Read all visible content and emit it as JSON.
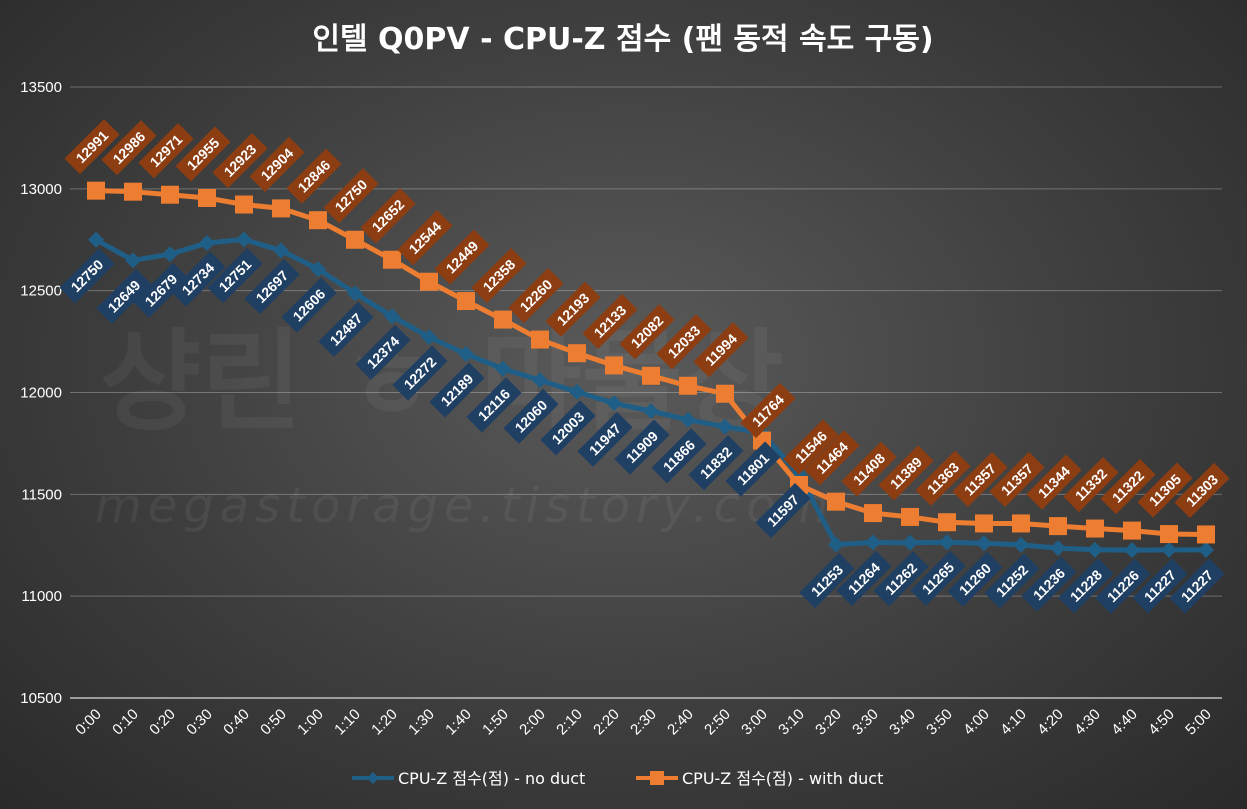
{
  "chart_data": {
    "type": "line",
    "title": "인텔 Q0PV - CPU-Z 점수 (팬 동적 속도 구동)",
    "watermark": {
      "main": "샹린 ㅎ 마물상",
      "url": "megastorage.tistory.com"
    },
    "x": [
      "0:00",
      "0:10",
      "0:20",
      "0:30",
      "0:40",
      "0:50",
      "1:00",
      "1:10",
      "1:20",
      "1:30",
      "1:40",
      "1:50",
      "2:00",
      "2:10",
      "2:20",
      "2:30",
      "2:40",
      "2:50",
      "3:00",
      "3:10",
      "3:20",
      "3:30",
      "3:40",
      "3:50",
      "4:00",
      "4:10",
      "4:20",
      "4:30",
      "4:40",
      "4:50",
      "5:00"
    ],
    "ylim": [
      10500,
      13500
    ],
    "yticks": [
      "10500",
      "11000",
      "11500",
      "12000",
      "12500",
      "13000",
      "13500"
    ],
    "grid": true,
    "legend_position": "bottom",
    "series": [
      {
        "name": "CPU-Z 점수(점) - no duct",
        "color": "#1f5f87",
        "label_color": "#1f3f63",
        "marker": "diamond",
        "values": [
          12750,
          12649,
          12679,
          12734,
          12751,
          12697,
          12606,
          12487,
          12374,
          12272,
          12189,
          12116,
          12060,
          12003,
          11947,
          11909,
          11866,
          11832,
          11801,
          11597,
          11253,
          11264,
          11262,
          11265,
          11260,
          11252,
          11236,
          11228,
          11226,
          11227,
          11227
        ]
      },
      {
        "name": "CPU-Z 점수(점) - with duct",
        "color": "#ed7d31",
        "label_color": "#8c3d12",
        "marker": "square",
        "values": [
          12991,
          12986,
          12971,
          12955,
          12923,
          12904,
          12846,
          12750,
          12652,
          12544,
          12449,
          12358,
          12260,
          12193,
          12133,
          12082,
          12033,
          11994,
          11764,
          11546,
          11464,
          11408,
          11389,
          11363,
          11357,
          11357,
          11344,
          11332,
          11322,
          11305,
          11303
        ]
      }
    ]
  }
}
